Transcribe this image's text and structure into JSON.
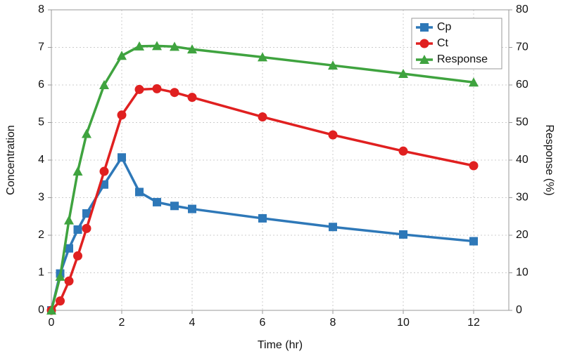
{
  "chart_data": {
    "type": "line",
    "x": [
      0,
      0.25,
      0.5,
      0.75,
      1,
      1.5,
      2,
      2.5,
      3,
      3.5,
      4,
      6,
      8,
      10,
      12
    ],
    "xlabel": "Time (hr)",
    "ylabel": "Concentration",
    "y2label": "Response (%)",
    "xlim": [
      0,
      13
    ],
    "xticks": [
      0,
      2,
      4,
      6,
      8,
      10,
      12
    ],
    "ylim": [
      0,
      8
    ],
    "yticks": [
      0,
      1,
      2,
      3,
      4,
      5,
      6,
      7,
      8
    ],
    "y2lim": [
      0,
      80
    ],
    "y2ticks": [
      0,
      10,
      20,
      30,
      40,
      50,
      60,
      70,
      80
    ],
    "grid": true,
    "legend": "upper right",
    "series": [
      {
        "name": "Cp",
        "color": "#2e78b8",
        "marker": "square",
        "values": [
          0,
          0.98,
          1.65,
          2.15,
          2.58,
          3.35,
          4.07,
          3.15,
          2.88,
          2.78,
          2.7,
          2.45,
          2.22,
          2.02,
          1.84
        ]
      },
      {
        "name": "Ct",
        "color": "#e02020",
        "marker": "circle",
        "values": [
          0,
          0.25,
          0.78,
          1.45,
          2.18,
          3.7,
          5.2,
          5.88,
          5.9,
          5.8,
          5.67,
          5.15,
          4.67,
          4.24,
          3.85
        ]
      },
      {
        "name": "Response",
        "color": "#3fa33f",
        "marker": "triangle",
        "axis": "y2",
        "values": [
          0,
          9,
          24,
          37,
          47,
          60,
          67.8,
          70.3,
          70.4,
          70.2,
          69.5,
          67.4,
          65.2,
          63,
          60.7
        ]
      }
    ]
  }
}
